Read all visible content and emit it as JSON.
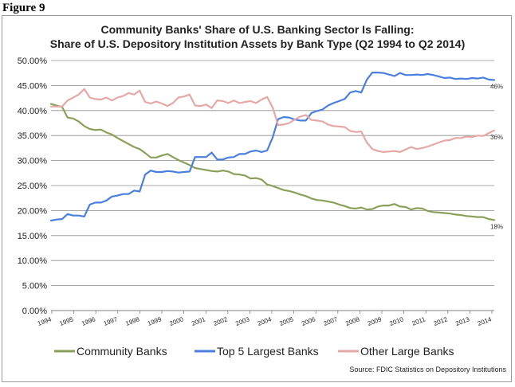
{
  "figure_label": "Figure 9",
  "chart_data": {
    "type": "line",
    "title": "Community Banks' Share of U.S. Banking Sector Is Falling:",
    "subtitle": "Share of U.S. Depository Institution Assets by Bank Type (Q2 1994 to Q2 2014)",
    "xlabel": "",
    "ylabel": "",
    "ylim": [
      0,
      50
    ],
    "xlim": [
      1994.5,
      2014.5
    ],
    "y_ticks": [
      "0.00%",
      "5.00%",
      "10.00%",
      "15.00%",
      "20.00%",
      "25.00%",
      "30.00%",
      "35.00%",
      "40.00%",
      "45.00%",
      "50.00%"
    ],
    "x_ticks": [
      "1994",
      "1995",
      "1996",
      "1997",
      "1998",
      "1999",
      "2000",
      "2001",
      "2002",
      "2003",
      "2004",
      "2005",
      "2006",
      "2007",
      "2008",
      "2009",
      "2010",
      "2011",
      "2012",
      "2013",
      "2014"
    ],
    "grid": true,
    "legend_position": "bottom",
    "source": "Source: FDIC Statistics on Depository Institutions",
    "end_labels": [
      "46%",
      "36%",
      "18%"
    ],
    "series": [
      {
        "name": "Community Banks",
        "color": "#8aa05a",
        "end_label": "18%",
        "points": [
          [
            1994.5,
            41.3
          ],
          [
            1994.75,
            41.0
          ],
          [
            1995.0,
            40.7
          ],
          [
            1995.25,
            38.6
          ],
          [
            1995.5,
            38.4
          ],
          [
            1995.75,
            37.8
          ],
          [
            1996.0,
            36.9
          ],
          [
            1996.25,
            36.3
          ],
          [
            1996.5,
            36.1
          ],
          [
            1996.75,
            36.2
          ],
          [
            1997.0,
            35.6
          ],
          [
            1997.25,
            35.2
          ],
          [
            1997.5,
            34.5
          ],
          [
            1997.75,
            33.9
          ],
          [
            1998.0,
            33.3
          ],
          [
            1998.25,
            32.7
          ],
          [
            1998.5,
            32.3
          ],
          [
            1998.75,
            31.5
          ],
          [
            1999.0,
            30.6
          ],
          [
            1999.25,
            30.6
          ],
          [
            1999.5,
            31.0
          ],
          [
            1999.75,
            31.3
          ],
          [
            2000.0,
            30.7
          ],
          [
            2000.25,
            30.1
          ],
          [
            2000.5,
            29.6
          ],
          [
            2000.75,
            29.1
          ],
          [
            2001.0,
            28.5
          ],
          [
            2001.25,
            28.3
          ],
          [
            2001.5,
            28.1
          ],
          [
            2001.75,
            27.9
          ],
          [
            2002.0,
            27.8
          ],
          [
            2002.25,
            28.0
          ],
          [
            2002.5,
            27.8
          ],
          [
            2002.75,
            27.3
          ],
          [
            2003.0,
            27.2
          ],
          [
            2003.25,
            27.0
          ],
          [
            2003.5,
            26.4
          ],
          [
            2003.75,
            26.5
          ],
          [
            2004.0,
            26.2
          ],
          [
            2004.25,
            25.2
          ],
          [
            2004.5,
            24.9
          ],
          [
            2004.75,
            24.5
          ],
          [
            2005.0,
            24.1
          ],
          [
            2005.25,
            23.9
          ],
          [
            2005.5,
            23.6
          ],
          [
            2005.75,
            23.2
          ],
          [
            2006.0,
            22.9
          ],
          [
            2006.25,
            22.4
          ],
          [
            2006.5,
            22.1
          ],
          [
            2006.75,
            22.0
          ],
          [
            2007.0,
            21.8
          ],
          [
            2007.25,
            21.6
          ],
          [
            2007.5,
            21.2
          ],
          [
            2007.75,
            20.9
          ],
          [
            2008.0,
            20.5
          ],
          [
            2008.25,
            20.4
          ],
          [
            2008.5,
            20.6
          ],
          [
            2008.75,
            20.2
          ],
          [
            2009.0,
            20.3
          ],
          [
            2009.25,
            20.8
          ],
          [
            2009.5,
            21.0
          ],
          [
            2009.75,
            21.0
          ],
          [
            2010.0,
            21.3
          ],
          [
            2010.25,
            20.8
          ],
          [
            2010.5,
            20.7
          ],
          [
            2010.75,
            20.2
          ],
          [
            2011.0,
            20.5
          ],
          [
            2011.25,
            20.4
          ],
          [
            2011.5,
            19.9
          ],
          [
            2011.75,
            19.7
          ],
          [
            2012.0,
            19.6
          ],
          [
            2012.25,
            19.5
          ],
          [
            2012.5,
            19.4
          ],
          [
            2012.75,
            19.2
          ],
          [
            2013.0,
            19.1
          ],
          [
            2013.25,
            18.9
          ],
          [
            2013.5,
            18.8
          ],
          [
            2013.75,
            18.7
          ],
          [
            2014.0,
            18.7
          ],
          [
            2014.25,
            18.3
          ],
          [
            2014.5,
            18.1
          ]
        ]
      },
      {
        "name": "Top 5 Largest Banks",
        "color": "#4a7fe0",
        "end_label": "46%",
        "points": [
          [
            1994.5,
            18.0
          ],
          [
            1994.75,
            18.2
          ],
          [
            1995.0,
            18.3
          ],
          [
            1995.25,
            19.3
          ],
          [
            1995.5,
            19.0
          ],
          [
            1995.75,
            19.0
          ],
          [
            1996.0,
            18.8
          ],
          [
            1996.25,
            21.2
          ],
          [
            1996.5,
            21.6
          ],
          [
            1996.75,
            21.6
          ],
          [
            1997.0,
            22.0
          ],
          [
            1997.25,
            22.8
          ],
          [
            1997.5,
            23.0
          ],
          [
            1997.75,
            23.3
          ],
          [
            1998.0,
            23.3
          ],
          [
            1998.25,
            24.0
          ],
          [
            1998.5,
            23.8
          ],
          [
            1998.75,
            27.2
          ],
          [
            1999.0,
            28.0
          ],
          [
            1999.25,
            27.7
          ],
          [
            1999.5,
            27.7
          ],
          [
            1999.75,
            27.9
          ],
          [
            2000.0,
            27.8
          ],
          [
            2000.25,
            27.6
          ],
          [
            2000.5,
            27.7
          ],
          [
            2000.75,
            27.8
          ],
          [
            2001.0,
            30.7
          ],
          [
            2001.25,
            30.7
          ],
          [
            2001.5,
            30.7
          ],
          [
            2001.75,
            31.6
          ],
          [
            2002.0,
            30.2
          ],
          [
            2002.25,
            30.2
          ],
          [
            2002.5,
            30.6
          ],
          [
            2002.75,
            30.7
          ],
          [
            2003.0,
            31.3
          ],
          [
            2003.25,
            31.3
          ],
          [
            2003.5,
            31.8
          ],
          [
            2003.75,
            32.0
          ],
          [
            2004.0,
            31.7
          ],
          [
            2004.25,
            32.0
          ],
          [
            2004.5,
            34.6
          ],
          [
            2004.75,
            38.3
          ],
          [
            2005.0,
            38.7
          ],
          [
            2005.25,
            38.6
          ],
          [
            2005.5,
            38.2
          ],
          [
            2005.75,
            38.0
          ],
          [
            2006.0,
            38.0
          ],
          [
            2006.25,
            39.5
          ],
          [
            2006.5,
            39.9
          ],
          [
            2006.75,
            40.2
          ],
          [
            2007.0,
            41.0
          ],
          [
            2007.25,
            41.5
          ],
          [
            2007.5,
            41.9
          ],
          [
            2007.75,
            42.3
          ],
          [
            2008.0,
            43.6
          ],
          [
            2008.25,
            43.9
          ],
          [
            2008.5,
            43.6
          ],
          [
            2008.75,
            46.2
          ],
          [
            2009.0,
            47.6
          ],
          [
            2009.25,
            47.6
          ],
          [
            2009.5,
            47.5
          ],
          [
            2009.75,
            47.2
          ],
          [
            2010.0,
            46.9
          ],
          [
            2010.25,
            47.5
          ],
          [
            2010.5,
            47.1
          ],
          [
            2010.75,
            47.1
          ],
          [
            2011.0,
            47.2
          ],
          [
            2011.25,
            47.1
          ],
          [
            2011.5,
            47.3
          ],
          [
            2011.75,
            47.1
          ],
          [
            2012.0,
            46.8
          ],
          [
            2012.25,
            46.5
          ],
          [
            2012.5,
            46.6
          ],
          [
            2012.75,
            46.3
          ],
          [
            2013.0,
            46.4
          ],
          [
            2013.25,
            46.3
          ],
          [
            2013.5,
            46.5
          ],
          [
            2013.75,
            46.4
          ],
          [
            2014.0,
            46.6
          ],
          [
            2014.25,
            46.2
          ],
          [
            2014.5,
            46.1
          ]
        ]
      },
      {
        "name": "Other Large Banks",
        "color": "#e6a8a5",
        "end_label": "36%",
        "points": [
          [
            1994.5,
            40.8
          ],
          [
            1994.75,
            40.8
          ],
          [
            1995.0,
            40.8
          ],
          [
            1995.25,
            42.0
          ],
          [
            1995.5,
            42.6
          ],
          [
            1995.75,
            43.2
          ],
          [
            1996.0,
            44.3
          ],
          [
            1996.25,
            42.6
          ],
          [
            1996.5,
            42.3
          ],
          [
            1996.75,
            42.2
          ],
          [
            1997.0,
            42.6
          ],
          [
            1997.25,
            42.0
          ],
          [
            1997.5,
            42.6
          ],
          [
            1997.75,
            42.9
          ],
          [
            1998.0,
            43.5
          ],
          [
            1998.25,
            43.2
          ],
          [
            1998.5,
            44.0
          ],
          [
            1998.75,
            41.7
          ],
          [
            1999.0,
            41.4
          ],
          [
            1999.25,
            41.8
          ],
          [
            1999.5,
            41.4
          ],
          [
            1999.75,
            40.9
          ],
          [
            2000.0,
            41.5
          ],
          [
            2000.25,
            42.6
          ],
          [
            2000.5,
            42.8
          ],
          [
            2000.75,
            43.2
          ],
          [
            2001.0,
            41.0
          ],
          [
            2001.25,
            40.9
          ],
          [
            2001.5,
            41.2
          ],
          [
            2001.75,
            40.5
          ],
          [
            2002.0,
            42.0
          ],
          [
            2002.25,
            41.9
          ],
          [
            2002.5,
            41.5
          ],
          [
            2002.75,
            42.0
          ],
          [
            2003.0,
            41.5
          ],
          [
            2003.25,
            41.7
          ],
          [
            2003.5,
            41.9
          ],
          [
            2003.75,
            41.5
          ],
          [
            2004.0,
            42.2
          ],
          [
            2004.25,
            42.7
          ],
          [
            2004.5,
            40.6
          ],
          [
            2004.75,
            37.1
          ],
          [
            2005.0,
            37.2
          ],
          [
            2005.25,
            37.5
          ],
          [
            2005.5,
            38.2
          ],
          [
            2005.75,
            38.8
          ],
          [
            2006.0,
            39.1
          ],
          [
            2006.25,
            38.1
          ],
          [
            2006.5,
            38.0
          ],
          [
            2006.75,
            37.8
          ],
          [
            2007.0,
            37.2
          ],
          [
            2007.25,
            36.9
          ],
          [
            2007.5,
            36.8
          ],
          [
            2007.75,
            36.7
          ],
          [
            2008.0,
            35.9
          ],
          [
            2008.25,
            35.7
          ],
          [
            2008.5,
            35.8
          ],
          [
            2008.75,
            33.6
          ],
          [
            2009.0,
            32.3
          ],
          [
            2009.25,
            31.9
          ],
          [
            2009.5,
            31.7
          ],
          [
            2009.75,
            31.8
          ],
          [
            2010.0,
            31.9
          ],
          [
            2010.25,
            31.7
          ],
          [
            2010.5,
            32.2
          ],
          [
            2010.75,
            32.7
          ],
          [
            2011.0,
            32.3
          ],
          [
            2011.25,
            32.5
          ],
          [
            2011.5,
            32.8
          ],
          [
            2011.75,
            33.2
          ],
          [
            2012.0,
            33.6
          ],
          [
            2012.25,
            34.0
          ],
          [
            2012.5,
            34.1
          ],
          [
            2012.75,
            34.5
          ],
          [
            2013.0,
            34.5
          ],
          [
            2013.25,
            34.8
          ],
          [
            2013.5,
            34.7
          ],
          [
            2013.75,
            35.0
          ],
          [
            2014.0,
            34.9
          ],
          [
            2014.25,
            35.5
          ],
          [
            2014.5,
            36.0
          ]
        ]
      }
    ]
  }
}
